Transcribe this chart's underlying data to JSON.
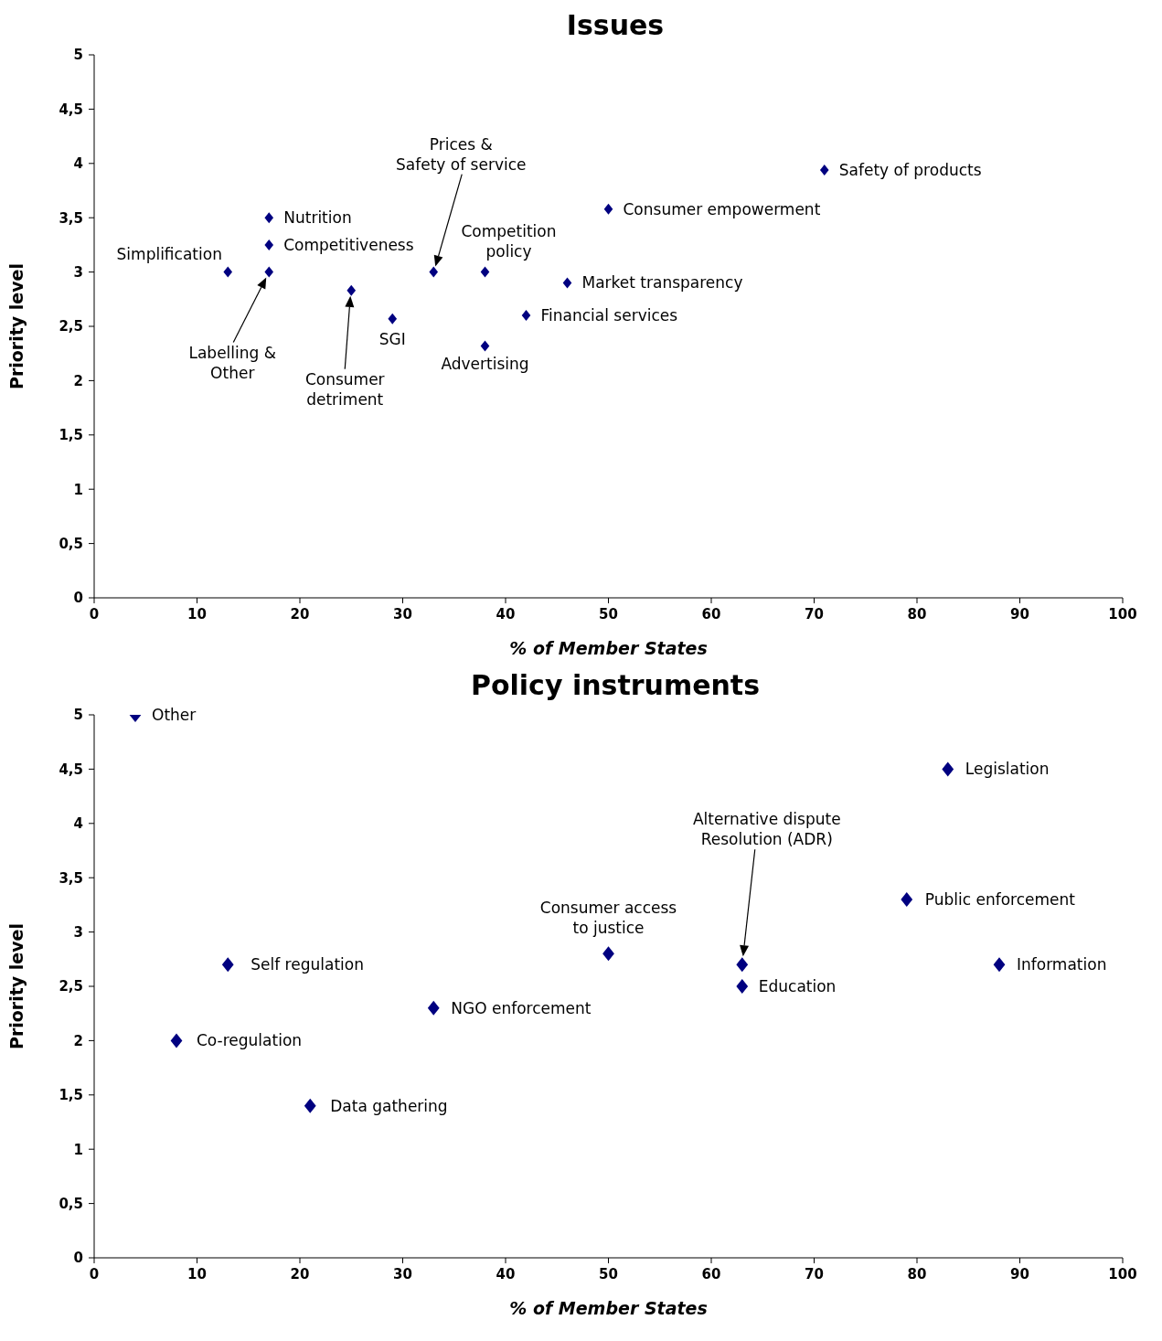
{
  "chart_data": [
    {
      "type": "scatter",
      "title": "Issues",
      "xlabel": "% of Member States",
      "ylabel": "Priority level",
      "xlim": [
        0,
        100
      ],
      "xticks": [
        0,
        10,
        20,
        30,
        40,
        50,
        60,
        70,
        80,
        90,
        100
      ],
      "ylim": [
        0,
        5
      ],
      "yticks": [
        0,
        {
          "value": 0.5,
          "label": "0,5"
        },
        1,
        {
          "value": 1.5,
          "label": "1,5"
        },
        2,
        {
          "value": 2.5,
          "label": "2,5"
        },
        3,
        {
          "value": 3.5,
          "label": "3,5"
        },
        4,
        {
          "value": 4.5,
          "label": "4,5"
        },
        5
      ],
      "grid": false,
      "legend": false,
      "marker": "diamond",
      "series": [
        {
          "color": "#000080",
          "x": [
            13,
            17,
            17,
            17,
            25,
            29,
            33,
            38,
            38,
            42,
            46,
            50,
            71
          ],
          "values": [
            3,
            3,
            3.5,
            3.25,
            2.83,
            2.57,
            3,
            3,
            2.32,
            2.6,
            2.9,
            3.58,
            3.94
          ]
        }
      ],
      "annotations": [
        {
          "text": "Simplification",
          "x": 13,
          "y": 3
        },
        "Labelling &\nOther",
        {
          "text": "Nutrition",
          "x": 17,
          "y": 3.5
        },
        {
          "text": "Competitiveness",
          "x": 17,
          "y": 3.25
        },
        "Consumer\ndetriment",
        {
          "text": "SGI",
          "x": 29,
          "y": 2.57
        },
        "Prices &\nSafety of service",
        {
          "text": "Competition\npolicy",
          "x": 38,
          "y": 3
        },
        {
          "text": "Advertising",
          "x": 38,
          "y": 2.32
        },
        {
          "text": "Financial services",
          "x": 42,
          "y": 2.6
        },
        {
          "text": "Market transparency",
          "x": 46,
          "y": 2.9
        },
        {
          "text": "Consumer empowerment",
          "x": 50,
          "y": 3.58
        },
        {
          "text": "Safety of products",
          "x": 71,
          "y": 3.94
        }
      ]
    },
    {
      "type": "scatter",
      "title": "Policy instruments",
      "xlabel": "% of Member States",
      "ylabel": "Priority level",
      "xlim": [
        0,
        100
      ],
      "xticks": [
        0,
        10,
        20,
        30,
        40,
        50,
        60,
        70,
        80,
        90,
        100
      ],
      "ylim": [
        0,
        5
      ],
      "yticks": [
        0,
        {
          "value": 0.5,
          "label": "0,5"
        },
        1,
        {
          "value": 1.5,
          "label": "1,5"
        },
        2,
        {
          "value": 2.5,
          "label": "2,5"
        },
        3,
        {
          "value": 3.5,
          "label": "3,5"
        },
        4,
        {
          "value": 4.5,
          "label": "4,5"
        },
        5
      ],
      "grid": false,
      "legend": false,
      "marker": "diamond",
      "series": [
        {
          "color": "#000080",
          "x": [
            4,
            8,
            13,
            21,
            33,
            50,
            63,
            63,
            79,
            83,
            88
          ],
          "values": [
            5,
            2,
            2.7,
            1.4,
            2.3,
            2.8,
            2.7,
            2.5,
            3.3,
            4.5,
            2.7
          ]
        }
      ],
      "annotations": [
        {
          "text": "Other",
          "x": 4,
          "y": 5
        },
        {
          "text": "Co-regulation",
          "x": 8,
          "y": 2
        },
        {
          "text": "Self regulation",
          "x": 13,
          "y": 2.7
        },
        {
          "text": "Data gathering",
          "x": 21,
          "y": 1.4
        },
        {
          "text": "NGO enforcement",
          "x": 33,
          "y": 2.3
        },
        {
          "text": "Consumer access\nto justice",
          "x": 50,
          "y": 2.8
        },
        "Alternative dispute\nResolution (ADR)",
        {
          "text": "Education",
          "x": 63,
          "y": 2.5
        },
        {
          "text": "Public enforcement",
          "x": 79,
          "y": 3.3
        },
        {
          "text": "Legislation",
          "x": 83,
          "y": 4.5
        },
        {
          "text": "Information",
          "x": 88,
          "y": 2.7
        }
      ]
    }
  ]
}
